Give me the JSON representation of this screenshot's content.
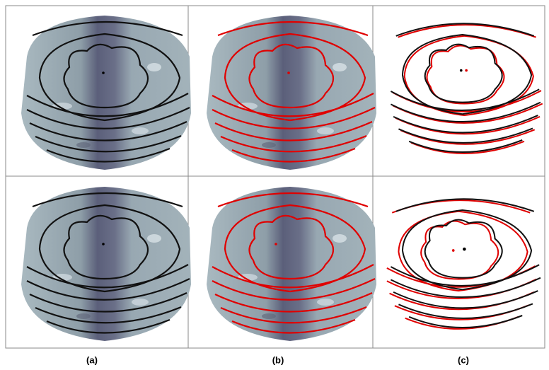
{
  "figure": {
    "panel_labels": [
      "(a)",
      "(b)",
      "(c)"
    ]
  }
}
